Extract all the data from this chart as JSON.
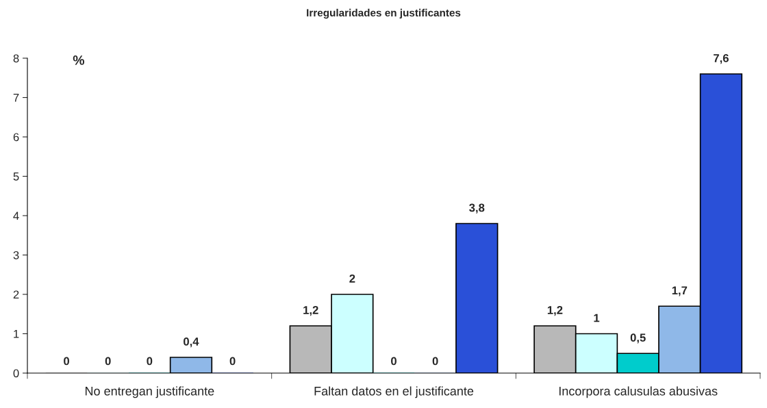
{
  "chart_data": {
    "type": "bar",
    "title": "Irregularidades en justificantes",
    "categories": [
      "No entregan justificante",
      "Faltan datos en el justificante",
      "Incorpora calusulas abusivas"
    ],
    "series": [
      {
        "color": "#b8b8b8",
        "values": [
          0,
          1.2,
          1.2
        ],
        "value_labels": [
          "0",
          "1,2",
          "1,2"
        ]
      },
      {
        "color": "#ccffff",
        "values": [
          0,
          2,
          1
        ],
        "value_labels": [
          "0",
          "2",
          "1"
        ]
      },
      {
        "color": "#00cccc",
        "values": [
          0,
          0,
          0.5
        ],
        "value_labels": [
          "0",
          "0",
          "0,5"
        ]
      },
      {
        "color": "#8fb8e8",
        "values": [
          0.4,
          0,
          1.7
        ],
        "value_labels": [
          "0,4",
          "0",
          "1,7"
        ]
      },
      {
        "color": "#2a50d8",
        "values": [
          0,
          3.8,
          7.6
        ],
        "value_labels": [
          "0",
          "3,8",
          "7,6"
        ]
      }
    ],
    "ylim": [
      0,
      8
    ],
    "yticks": [
      0,
      1,
      2,
      3,
      4,
      5,
      6,
      7,
      8
    ],
    "grid": false,
    "legend": false,
    "annotations": [
      "%"
    ]
  }
}
